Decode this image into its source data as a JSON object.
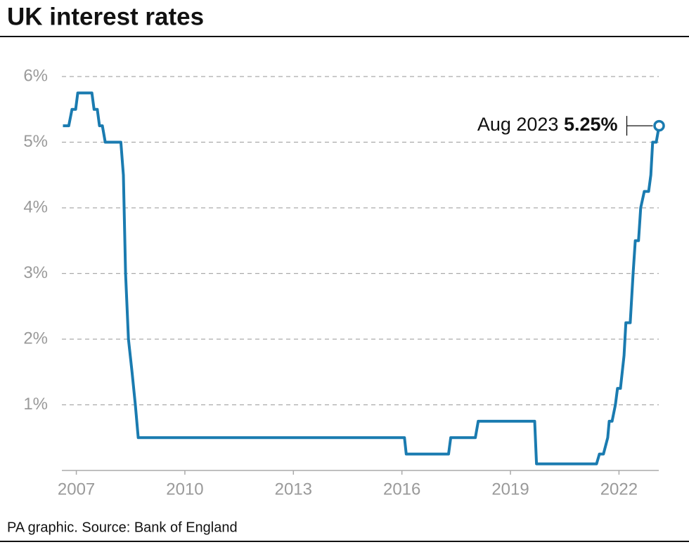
{
  "chart_data": {
    "type": "line",
    "title": "UK interest rates",
    "source": "PA graphic. Source: Bank of England",
    "color": "#1a7bb0",
    "x": [
      2006.63,
      2006.79,
      2006.88,
      2006.98,
      2007.04,
      2007.43,
      2007.49,
      2007.58,
      2007.64,
      2007.72,
      2007.8,
      2008.23,
      2008.3,
      2008.36,
      2008.44,
      2008.54,
      2008.63,
      2008.71,
      2016.07,
      2016.12,
      2017.29,
      2017.35,
      2018.03,
      2018.11,
      2019.67,
      2019.72,
      2021.38,
      2021.46,
      2021.57,
      2021.69,
      2021.73,
      2021.81,
      2021.9,
      2021.96,
      2022.04,
      2022.14,
      2022.19,
      2022.31,
      2022.39,
      2022.45,
      2022.54,
      2022.6,
      2022.7,
      2022.82,
      2022.88,
      2022.93,
      2023.03,
      2023.11
    ],
    "values": [
      5.25,
      5.25,
      5.5,
      5.5,
      5.75,
      5.75,
      5.5,
      5.5,
      5.25,
      5.25,
      5.0,
      5.0,
      4.5,
      3.0,
      2.0,
      1.5,
      1.0,
      0.5,
      0.5,
      0.25,
      0.25,
      0.5,
      0.5,
      0.75,
      0.75,
      0.1,
      0.1,
      0.25,
      0.25,
      0.5,
      0.75,
      0.75,
      1.0,
      1.25,
      1.25,
      1.75,
      2.25,
      2.25,
      3.0,
      3.5,
      3.5,
      4.0,
      4.25,
      4.25,
      4.5,
      5.0,
      5.0,
      5.25
    ],
    "annotation": {
      "text": "Aug 2023",
      "value_label": "5.25%"
    },
    "xlim": [
      2006.6,
      2023.1
    ],
    "xticks": [
      2007,
      2010,
      2013,
      2016,
      2019,
      2022
    ],
    "ylim": [
      0,
      6
    ],
    "yticks": [
      {
        "value": 1,
        "label": "1%"
      },
      {
        "value": 2,
        "label": "2%"
      },
      {
        "value": 3,
        "label": "3%"
      },
      {
        "value": 4,
        "label": "4%"
      },
      {
        "value": 5,
        "label": "5%"
      },
      {
        "value": 6,
        "label": "6%"
      }
    ],
    "grid": true
  }
}
